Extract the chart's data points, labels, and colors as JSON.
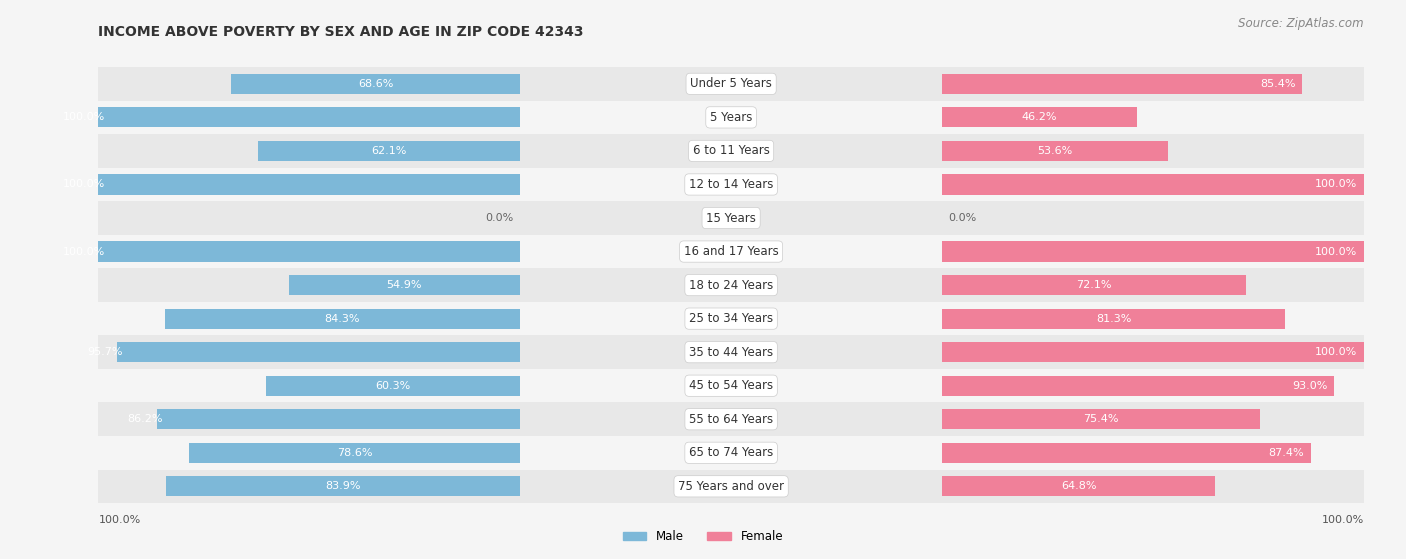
{
  "title": "INCOME ABOVE POVERTY BY SEX AND AGE IN ZIP CODE 42343",
  "source": "Source: ZipAtlas.com",
  "categories": [
    "Under 5 Years",
    "5 Years",
    "6 to 11 Years",
    "12 to 14 Years",
    "15 Years",
    "16 and 17 Years",
    "18 to 24 Years",
    "25 to 34 Years",
    "35 to 44 Years",
    "45 to 54 Years",
    "55 to 64 Years",
    "65 to 74 Years",
    "75 Years and over"
  ],
  "male": [
    68.6,
    100.0,
    62.1,
    100.0,
    0.0,
    100.0,
    54.9,
    84.3,
    95.7,
    60.3,
    86.2,
    78.6,
    83.9
  ],
  "female": [
    85.4,
    46.2,
    53.6,
    100.0,
    0.0,
    100.0,
    72.1,
    81.3,
    100.0,
    93.0,
    75.4,
    87.4,
    64.8
  ],
  "male_color": "#7db8d8",
  "female_color": "#f08099",
  "male_label": "Male",
  "female_label": "Female",
  "bg_color": "#f5f5f5",
  "row_even_color": "#e8e8e8",
  "row_odd_color": "#f5f5f5",
  "bar_height": 0.6,
  "title_fontsize": 10,
  "source_fontsize": 8.5,
  "label_fontsize": 8,
  "cat_fontsize": 8.5,
  "axis_label_fontsize": 8
}
